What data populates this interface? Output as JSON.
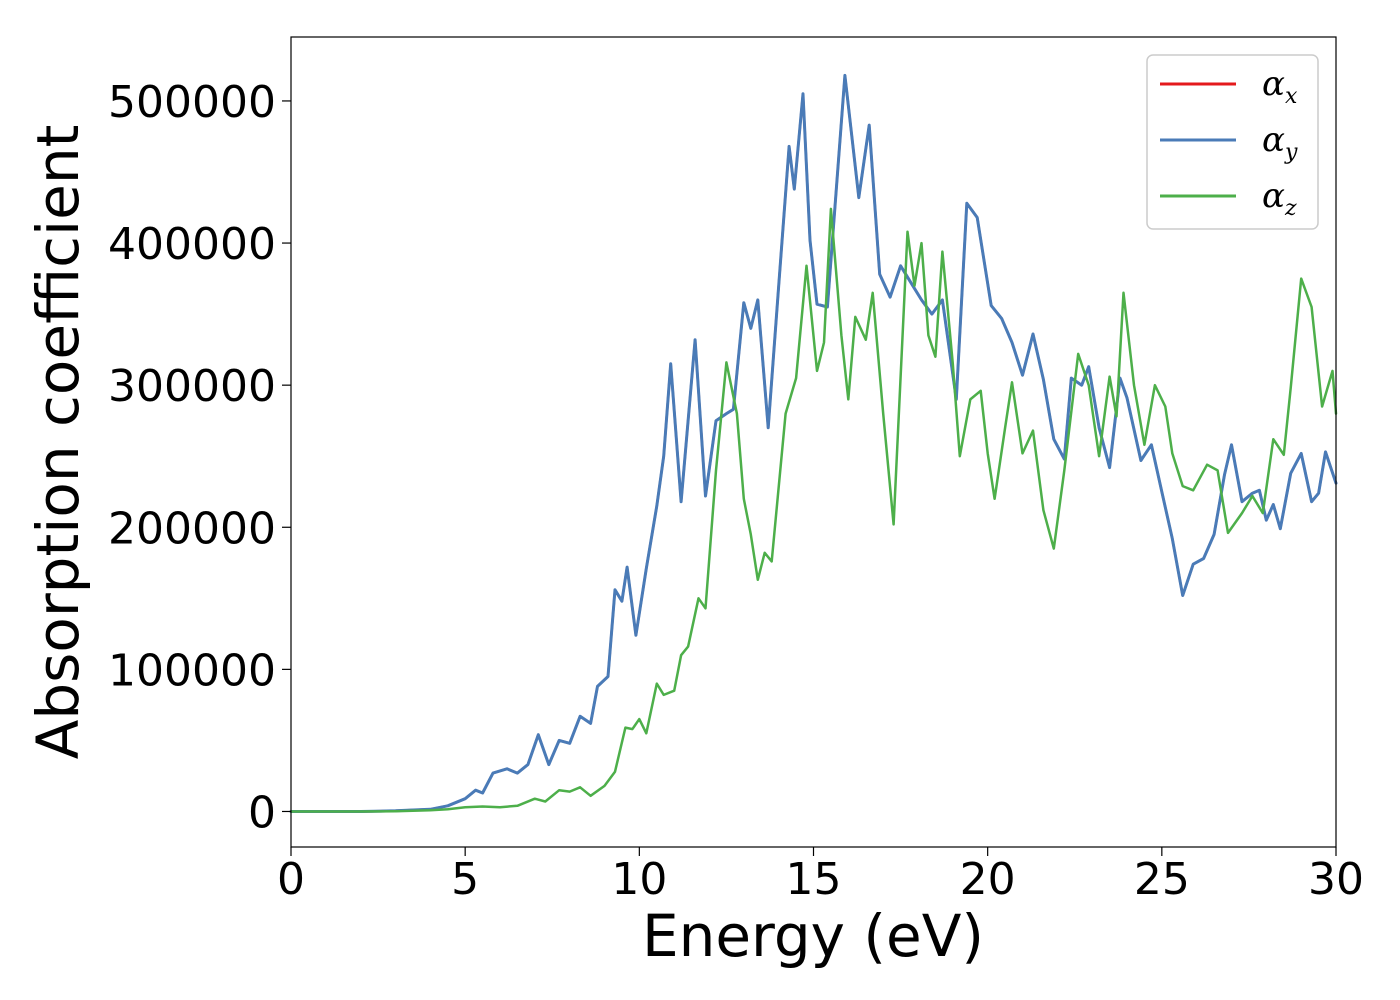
{
  "chart_data": {
    "type": "line",
    "title": "",
    "xlabel": "Energy (eV)",
    "ylabel": "Absorption coefficient",
    "xlim": [
      0,
      30
    ],
    "ylim": [
      -25000,
      545000
    ],
    "xticks": [
      0,
      5,
      10,
      15,
      20,
      25,
      30
    ],
    "xtick_labels": [
      "0",
      "5",
      "10",
      "15",
      "20",
      "25",
      "30"
    ],
    "yticks": [
      0,
      100000,
      200000,
      300000,
      400000,
      500000
    ],
    "ytick_labels": [
      "0",
      "100000",
      "200000",
      "300000",
      "400000",
      "500000"
    ],
    "grid": false,
    "legend_position": "top-right",
    "series": [
      {
        "name": "α",
        "subscript": "x",
        "color": "#e41a1c",
        "points": [
          [
            0,
            0
          ],
          [
            2,
            0
          ],
          [
            3,
            500
          ],
          [
            4,
            1500
          ],
          [
            4.5,
            4000
          ],
          [
            5,
            9000
          ],
          [
            5.3,
            15000
          ],
          [
            5.5,
            13000
          ],
          [
            5.8,
            27000
          ],
          [
            6.2,
            30000
          ],
          [
            6.5,
            27000
          ],
          [
            6.8,
            33000
          ],
          [
            7.1,
            54000
          ],
          [
            7.4,
            33000
          ],
          [
            7.7,
            50000
          ],
          [
            8,
            48000
          ],
          [
            8.3,
            67000
          ],
          [
            8.6,
            62000
          ],
          [
            8.8,
            88000
          ],
          [
            9.1,
            95000
          ],
          [
            9.3,
            156000
          ],
          [
            9.5,
            148000
          ],
          [
            9.65,
            172000
          ],
          [
            9.9,
            124000
          ],
          [
            10.2,
            171000
          ],
          [
            10.5,
            215000
          ],
          [
            10.7,
            250000
          ],
          [
            10.9,
            315000
          ],
          [
            11.2,
            218000
          ],
          [
            11.6,
            332000
          ],
          [
            11.9,
            222000
          ],
          [
            12.2,
            275000
          ],
          [
            12.5,
            280000
          ],
          [
            12.7,
            283000
          ],
          [
            13,
            358000
          ],
          [
            13.2,
            340000
          ],
          [
            13.4,
            360000
          ],
          [
            13.7,
            270000
          ],
          [
            14,
            370000
          ],
          [
            14.3,
            468000
          ],
          [
            14.45,
            438000
          ],
          [
            14.7,
            505000
          ],
          [
            14.9,
            402000
          ],
          [
            15.1,
            357000
          ],
          [
            15.4,
            355000
          ],
          [
            15.9,
            518000
          ],
          [
            16.3,
            432000
          ],
          [
            16.6,
            483000
          ],
          [
            16.9,
            378000
          ],
          [
            17.2,
            362000
          ],
          [
            17.5,
            384000
          ],
          [
            17.8,
            372000
          ],
          [
            18.1,
            360000
          ],
          [
            18.4,
            350000
          ],
          [
            18.7,
            360000
          ],
          [
            19.1,
            290000
          ],
          [
            19.4,
            428000
          ],
          [
            19.7,
            418000
          ],
          [
            20.1,
            356000
          ],
          [
            20.4,
            347000
          ],
          [
            20.7,
            330000
          ],
          [
            21,
            307000
          ],
          [
            21.3,
            336000
          ],
          [
            21.6,
            304000
          ],
          [
            21.9,
            262000
          ],
          [
            22.2,
            248000
          ],
          [
            22.4,
            305000
          ],
          [
            22.7,
            300000
          ],
          [
            22.9,
            313000
          ],
          [
            23.2,
            270000
          ],
          [
            23.5,
            242000
          ],
          [
            23.8,
            305000
          ],
          [
            24,
            291000
          ],
          [
            24.4,
            247000
          ],
          [
            24.7,
            258000
          ],
          [
            25,
            225000
          ],
          [
            25.3,
            192000
          ],
          [
            25.6,
            152000
          ],
          [
            25.9,
            174000
          ],
          [
            26.2,
            178000
          ],
          [
            26.5,
            195000
          ],
          [
            26.8,
            237000
          ],
          [
            27,
            258000
          ],
          [
            27.3,
            218000
          ],
          [
            27.6,
            224000
          ],
          [
            27.8,
            226000
          ],
          [
            28,
            205000
          ],
          [
            28.2,
            216000
          ],
          [
            28.4,
            199000
          ],
          [
            28.7,
            238000
          ],
          [
            29,
            252000
          ],
          [
            29.3,
            218000
          ],
          [
            29.5,
            224000
          ],
          [
            29.7,
            253000
          ],
          [
            30,
            231000
          ]
        ]
      },
      {
        "name": "α",
        "subscript": "y",
        "color": "#4a7bb7",
        "points": [
          [
            0,
            0
          ],
          [
            2,
            0
          ],
          [
            3,
            500
          ],
          [
            4,
            1500
          ],
          [
            4.5,
            4000
          ],
          [
            5,
            9000
          ],
          [
            5.3,
            15000
          ],
          [
            5.5,
            13000
          ],
          [
            5.8,
            27000
          ],
          [
            6.2,
            30000
          ],
          [
            6.5,
            27000
          ],
          [
            6.8,
            33000
          ],
          [
            7.1,
            54000
          ],
          [
            7.4,
            33000
          ],
          [
            7.7,
            50000
          ],
          [
            8,
            48000
          ],
          [
            8.3,
            67000
          ],
          [
            8.6,
            62000
          ],
          [
            8.8,
            88000
          ],
          [
            9.1,
            95000
          ],
          [
            9.3,
            156000
          ],
          [
            9.5,
            148000
          ],
          [
            9.65,
            172000
          ],
          [
            9.9,
            124000
          ],
          [
            10.2,
            171000
          ],
          [
            10.5,
            215000
          ],
          [
            10.7,
            250000
          ],
          [
            10.9,
            315000
          ],
          [
            11.2,
            218000
          ],
          [
            11.6,
            332000
          ],
          [
            11.9,
            222000
          ],
          [
            12.2,
            275000
          ],
          [
            12.5,
            280000
          ],
          [
            12.7,
            283000
          ],
          [
            13,
            358000
          ],
          [
            13.2,
            340000
          ],
          [
            13.4,
            360000
          ],
          [
            13.7,
            270000
          ],
          [
            14,
            370000
          ],
          [
            14.3,
            468000
          ],
          [
            14.45,
            438000
          ],
          [
            14.7,
            505000
          ],
          [
            14.9,
            402000
          ],
          [
            15.1,
            357000
          ],
          [
            15.4,
            355000
          ],
          [
            15.9,
            518000
          ],
          [
            16.3,
            432000
          ],
          [
            16.6,
            483000
          ],
          [
            16.9,
            378000
          ],
          [
            17.2,
            362000
          ],
          [
            17.5,
            384000
          ],
          [
            17.8,
            372000
          ],
          [
            18.1,
            360000
          ],
          [
            18.4,
            350000
          ],
          [
            18.7,
            360000
          ],
          [
            19.1,
            290000
          ],
          [
            19.4,
            428000
          ],
          [
            19.7,
            418000
          ],
          [
            20.1,
            356000
          ],
          [
            20.4,
            347000
          ],
          [
            20.7,
            330000
          ],
          [
            21,
            307000
          ],
          [
            21.3,
            336000
          ],
          [
            21.6,
            304000
          ],
          [
            21.9,
            262000
          ],
          [
            22.2,
            248000
          ],
          [
            22.4,
            305000
          ],
          [
            22.7,
            300000
          ],
          [
            22.9,
            313000
          ],
          [
            23.2,
            270000
          ],
          [
            23.5,
            242000
          ],
          [
            23.8,
            305000
          ],
          [
            24,
            291000
          ],
          [
            24.4,
            247000
          ],
          [
            24.7,
            258000
          ],
          [
            25,
            225000
          ],
          [
            25.3,
            192000
          ],
          [
            25.6,
            152000
          ],
          [
            25.9,
            174000
          ],
          [
            26.2,
            178000
          ],
          [
            26.5,
            195000
          ],
          [
            26.8,
            237000
          ],
          [
            27,
            258000
          ],
          [
            27.3,
            218000
          ],
          [
            27.6,
            224000
          ],
          [
            27.8,
            226000
          ],
          [
            28,
            205000
          ],
          [
            28.2,
            216000
          ],
          [
            28.4,
            199000
          ],
          [
            28.7,
            238000
          ],
          [
            29,
            252000
          ],
          [
            29.3,
            218000
          ],
          [
            29.5,
            224000
          ],
          [
            29.7,
            253000
          ],
          [
            30,
            231000
          ]
        ]
      },
      {
        "name": "α",
        "subscript": "z",
        "color": "#4daf4a",
        "points": [
          [
            0,
            0
          ],
          [
            2,
            0
          ],
          [
            3,
            200
          ],
          [
            4,
            800
          ],
          [
            4.5,
            1500
          ],
          [
            5,
            3000
          ],
          [
            5.5,
            3500
          ],
          [
            6,
            3000
          ],
          [
            6.5,
            4000
          ],
          [
            7,
            9000
          ],
          [
            7.3,
            7000
          ],
          [
            7.7,
            15000
          ],
          [
            8,
            14000
          ],
          [
            8.3,
            17000
          ],
          [
            8.6,
            11000
          ],
          [
            9,
            18000
          ],
          [
            9.3,
            28000
          ],
          [
            9.6,
            59000
          ],
          [
            9.8,
            58000
          ],
          [
            10,
            65000
          ],
          [
            10.2,
            55000
          ],
          [
            10.5,
            90000
          ],
          [
            10.7,
            82000
          ],
          [
            11,
            85000
          ],
          [
            11.2,
            110000
          ],
          [
            11.4,
            116000
          ],
          [
            11.7,
            150000
          ],
          [
            11.9,
            143000
          ],
          [
            12.2,
            240000
          ],
          [
            12.5,
            316000
          ],
          [
            12.8,
            280000
          ],
          [
            13,
            220000
          ],
          [
            13.2,
            195000
          ],
          [
            13.4,
            163000
          ],
          [
            13.6,
            182000
          ],
          [
            13.8,
            176000
          ],
          [
            14.2,
            280000
          ],
          [
            14.5,
            305000
          ],
          [
            14.8,
            384000
          ],
          [
            15.1,
            310000
          ],
          [
            15.3,
            330000
          ],
          [
            15.5,
            424000
          ],
          [
            15.8,
            335000
          ],
          [
            16,
            290000
          ],
          [
            16.2,
            348000
          ],
          [
            16.5,
            332000
          ],
          [
            16.7,
            365000
          ],
          [
            17,
            280000
          ],
          [
            17.3,
            202000
          ],
          [
            17.7,
            408000
          ],
          [
            17.9,
            370000
          ],
          [
            18.1,
            400000
          ],
          [
            18.3,
            335000
          ],
          [
            18.5,
            320000
          ],
          [
            18.7,
            394000
          ],
          [
            19,
            315000
          ],
          [
            19.2,
            250000
          ],
          [
            19.5,
            290000
          ],
          [
            19.8,
            296000
          ],
          [
            20,
            252000
          ],
          [
            20.2,
            220000
          ],
          [
            20.5,
            270000
          ],
          [
            20.7,
            302000
          ],
          [
            21,
            252000
          ],
          [
            21.3,
            268000
          ],
          [
            21.6,
            212000
          ],
          [
            21.9,
            185000
          ],
          [
            22.2,
            240000
          ],
          [
            22.6,
            322000
          ],
          [
            22.9,
            300000
          ],
          [
            23.2,
            250000
          ],
          [
            23.5,
            306000
          ],
          [
            23.7,
            278000
          ],
          [
            23.9,
            365000
          ],
          [
            24.2,
            300000
          ],
          [
            24.5,
            258000
          ],
          [
            24.8,
            300000
          ],
          [
            25.1,
            285000
          ],
          [
            25.3,
            252000
          ],
          [
            25.6,
            229000
          ],
          [
            25.9,
            226000
          ],
          [
            26.3,
            244000
          ],
          [
            26.6,
            240000
          ],
          [
            26.9,
            196000
          ],
          [
            27.3,
            210000
          ],
          [
            27.6,
            222000
          ],
          [
            27.9,
            210000
          ],
          [
            28.2,
            262000
          ],
          [
            28.5,
            251000
          ],
          [
            28.7,
            298000
          ],
          [
            29,
            375000
          ],
          [
            29.3,
            355000
          ],
          [
            29.6,
            285000
          ],
          [
            29.9,
            310000
          ],
          [
            30,
            280000
          ]
        ]
      }
    ]
  }
}
